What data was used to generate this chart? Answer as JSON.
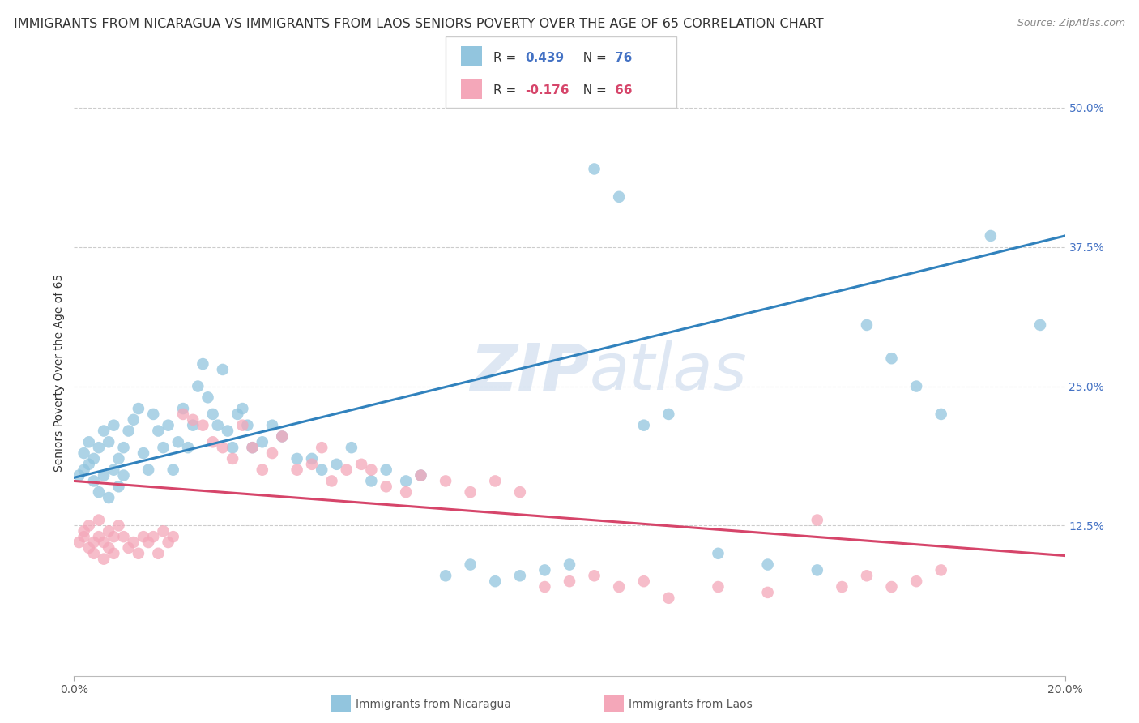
{
  "title": "IMMIGRANTS FROM NICARAGUA VS IMMIGRANTS FROM LAOS SENIORS POVERTY OVER THE AGE OF 65 CORRELATION CHART",
  "source": "Source: ZipAtlas.com",
  "ylabel": "Seniors Poverty Over the Age of 65",
  "ytick_labels": [
    "12.5%",
    "25.0%",
    "37.5%",
    "50.0%"
  ],
  "ytick_values": [
    0.125,
    0.25,
    0.375,
    0.5
  ],
  "xlim": [
    0.0,
    0.2
  ],
  "ylim": [
    -0.01,
    0.535
  ],
  "watermark": "ZIPatlas",
  "nic_R": 0.439,
  "nic_N": 76,
  "laos_R": -0.176,
  "laos_N": 66,
  "nic_color": "#92c5de",
  "nic_line_color": "#3182bd",
  "laos_color": "#f4a7b9",
  "laos_line_color": "#d6456a",
  "nic_line_y0": 0.168,
  "nic_line_y1": 0.385,
  "laos_line_y0": 0.165,
  "laos_line_y1": 0.098,
  "background_color": "#ffffff",
  "grid_color": "#cccccc",
  "title_fontsize": 11.5,
  "axis_label_fontsize": 10,
  "tick_fontsize": 10,
  "nic_x": [
    0.001,
    0.002,
    0.002,
    0.003,
    0.003,
    0.004,
    0.004,
    0.005,
    0.005,
    0.006,
    0.006,
    0.007,
    0.007,
    0.008,
    0.008,
    0.009,
    0.009,
    0.01,
    0.01,
    0.011,
    0.012,
    0.013,
    0.014,
    0.015,
    0.016,
    0.017,
    0.018,
    0.019,
    0.02,
    0.021,
    0.022,
    0.023,
    0.024,
    0.025,
    0.026,
    0.027,
    0.028,
    0.029,
    0.03,
    0.031,
    0.032,
    0.033,
    0.034,
    0.035,
    0.036,
    0.038,
    0.04,
    0.042,
    0.045,
    0.048,
    0.05,
    0.053,
    0.056,
    0.06,
    0.063,
    0.067,
    0.07,
    0.075,
    0.08,
    0.085,
    0.09,
    0.095,
    0.1,
    0.105,
    0.11,
    0.115,
    0.12,
    0.13,
    0.14,
    0.15,
    0.16,
    0.165,
    0.17,
    0.175,
    0.185,
    0.195
  ],
  "nic_y": [
    0.17,
    0.175,
    0.19,
    0.18,
    0.2,
    0.165,
    0.185,
    0.155,
    0.195,
    0.17,
    0.21,
    0.15,
    0.2,
    0.175,
    0.215,
    0.16,
    0.185,
    0.195,
    0.17,
    0.21,
    0.22,
    0.23,
    0.19,
    0.175,
    0.225,
    0.21,
    0.195,
    0.215,
    0.175,
    0.2,
    0.23,
    0.195,
    0.215,
    0.25,
    0.27,
    0.24,
    0.225,
    0.215,
    0.265,
    0.21,
    0.195,
    0.225,
    0.23,
    0.215,
    0.195,
    0.2,
    0.215,
    0.205,
    0.185,
    0.185,
    0.175,
    0.18,
    0.195,
    0.165,
    0.175,
    0.165,
    0.17,
    0.08,
    0.09,
    0.075,
    0.08,
    0.085,
    0.09,
    0.445,
    0.42,
    0.215,
    0.225,
    0.1,
    0.09,
    0.085,
    0.305,
    0.275,
    0.25,
    0.225,
    0.385,
    0.305
  ],
  "laos_x": [
    0.001,
    0.002,
    0.002,
    0.003,
    0.003,
    0.004,
    0.004,
    0.005,
    0.005,
    0.006,
    0.006,
    0.007,
    0.007,
    0.008,
    0.008,
    0.009,
    0.01,
    0.011,
    0.012,
    0.013,
    0.014,
    0.015,
    0.016,
    0.017,
    0.018,
    0.019,
    0.02,
    0.022,
    0.024,
    0.026,
    0.028,
    0.03,
    0.032,
    0.034,
    0.036,
    0.038,
    0.04,
    0.042,
    0.045,
    0.048,
    0.05,
    0.052,
    0.055,
    0.058,
    0.06,
    0.063,
    0.067,
    0.07,
    0.075,
    0.08,
    0.085,
    0.09,
    0.095,
    0.1,
    0.105,
    0.11,
    0.115,
    0.12,
    0.13,
    0.14,
    0.15,
    0.155,
    0.16,
    0.165,
    0.17,
    0.175
  ],
  "laos_y": [
    0.11,
    0.115,
    0.12,
    0.105,
    0.125,
    0.11,
    0.1,
    0.115,
    0.13,
    0.11,
    0.095,
    0.12,
    0.105,
    0.115,
    0.1,
    0.125,
    0.115,
    0.105,
    0.11,
    0.1,
    0.115,
    0.11,
    0.115,
    0.1,
    0.12,
    0.11,
    0.115,
    0.225,
    0.22,
    0.215,
    0.2,
    0.195,
    0.185,
    0.215,
    0.195,
    0.175,
    0.19,
    0.205,
    0.175,
    0.18,
    0.195,
    0.165,
    0.175,
    0.18,
    0.175,
    0.16,
    0.155,
    0.17,
    0.165,
    0.155,
    0.165,
    0.155,
    0.07,
    0.075,
    0.08,
    0.07,
    0.075,
    0.06,
    0.07,
    0.065,
    0.13,
    0.07,
    0.08,
    0.07,
    0.075,
    0.085
  ]
}
